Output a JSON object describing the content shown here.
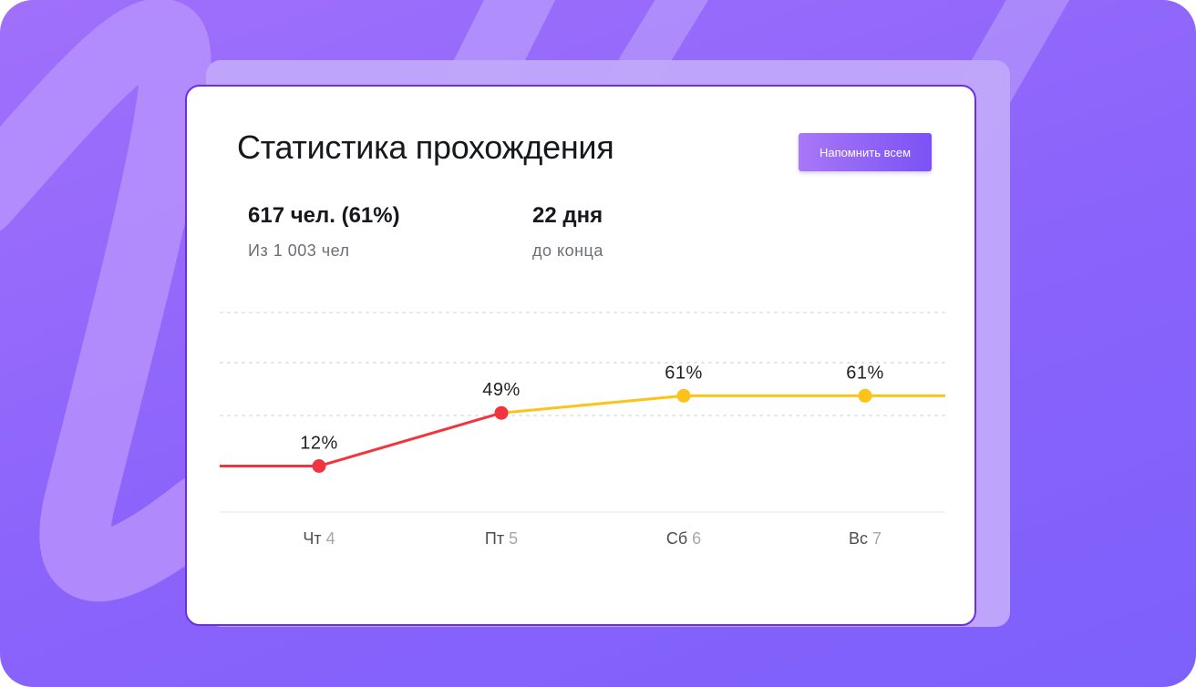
{
  "card": {
    "title": "Статистика прохождения",
    "remind_button": "Напомнить всем"
  },
  "stats": [
    {
      "value": "617 чел. (61%)",
      "label": "Из 1 003 чел"
    },
    {
      "value": "22 дня",
      "label": "до конца"
    }
  ],
  "colors": {
    "accent": "#7b52f5",
    "background": "#8a63fb",
    "low_line": "#f2343f",
    "high_line": "#fcc419"
  },
  "chart_data": {
    "type": "line",
    "categories": [
      {
        "day": "Чт",
        "date": "4"
      },
      {
        "day": "Пт",
        "date": "5"
      },
      {
        "day": "Сб",
        "date": "6"
      },
      {
        "day": "Вс",
        "date": "7"
      }
    ],
    "values": [
      12,
      49,
      61,
      61
    ],
    "labels": [
      "12%",
      "49%",
      "61%",
      "61%"
    ],
    "grid": true,
    "segment_colors": [
      "#f2343f",
      "#fcc419",
      "#fcc419"
    ]
  }
}
